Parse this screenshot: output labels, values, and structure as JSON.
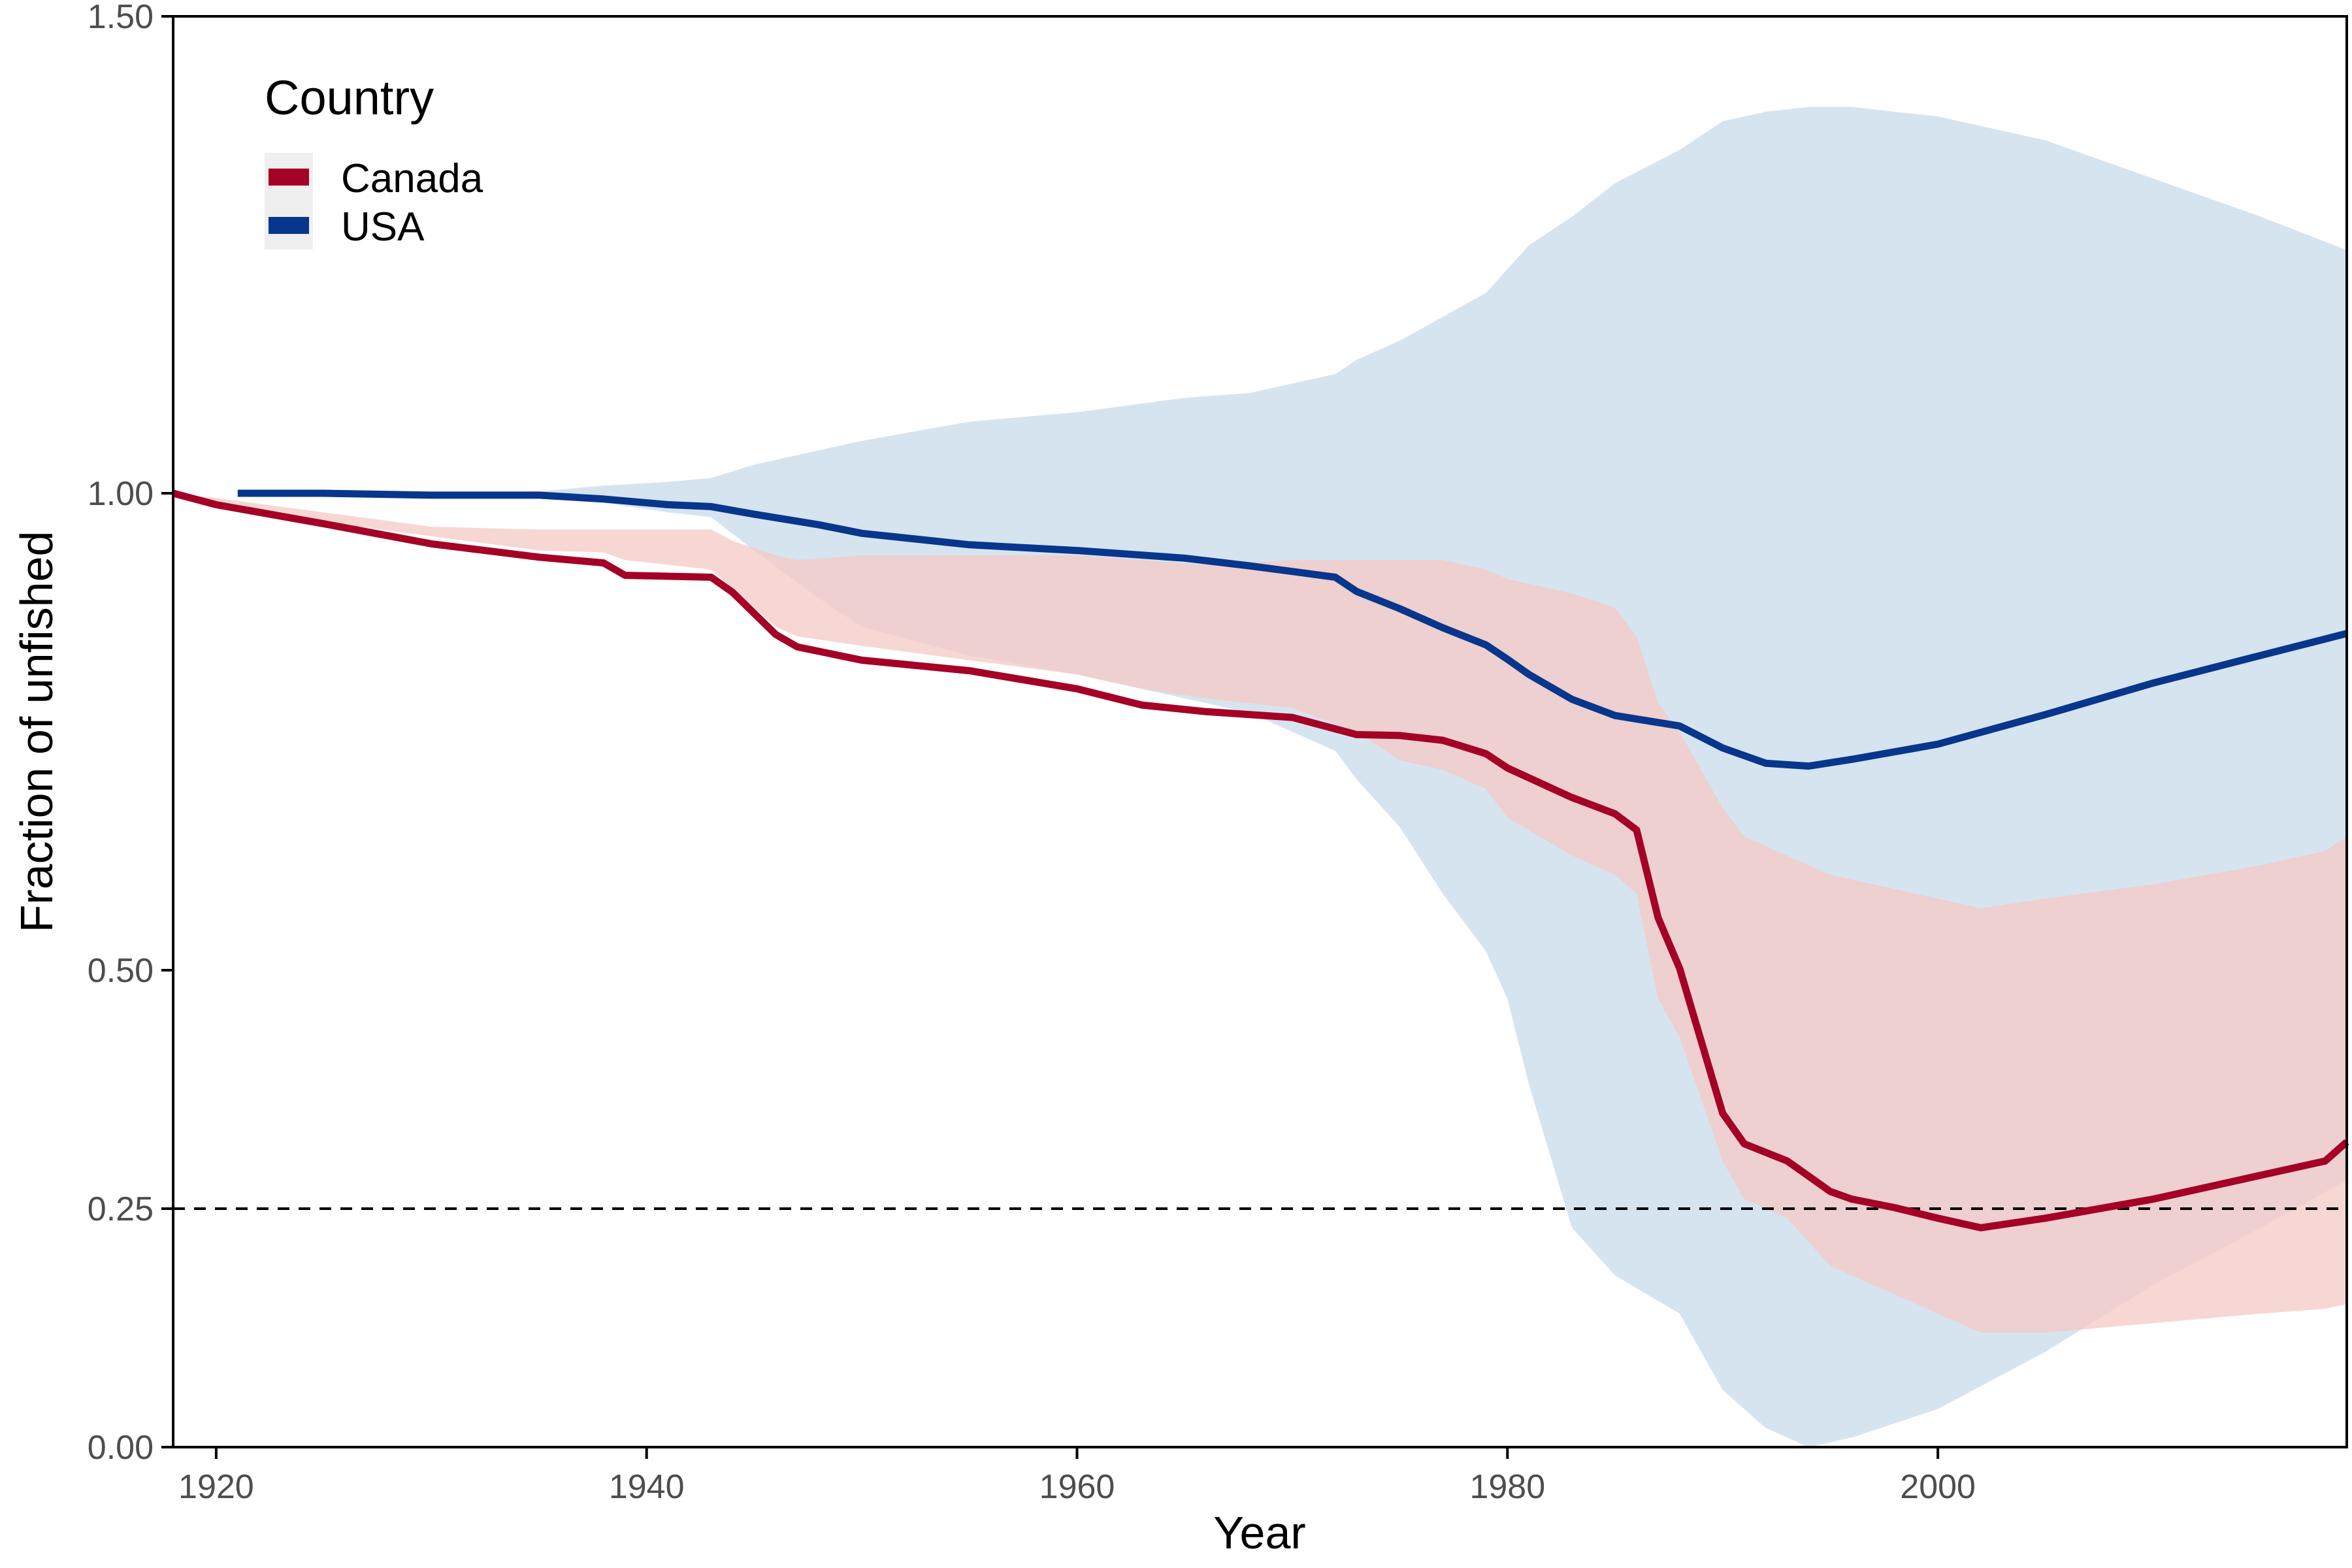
{
  "chart_data": {
    "type": "line",
    "xlabel": "Year",
    "ylabel": "Fraction of unfished",
    "xlim": [
      1918,
      2019
    ],
    "ylim": [
      0,
      1.5
    ],
    "x_ticks": [
      "1920",
      "1940",
      "1960",
      "1980",
      "2000"
    ],
    "y_ticks": [
      "0.00",
      "0.25",
      "0.50",
      "1.00",
      "1.50"
    ],
    "y_scale_note": "non-uniform: 0.00, 0.25, 0.50 evenly spaced; 1.00 and 1.50 on compressed upper segment",
    "reference_line": {
      "y": 0.25,
      "style": "dashed",
      "color": "#000000"
    },
    "legend": {
      "title": "Country",
      "position": "top-left",
      "entries": [
        "Canada",
        "USA"
      ]
    },
    "series": [
      {
        "name": "Canada",
        "color": "#a50026",
        "band_color": "#f4c9c4",
        "x": [
          1918,
          1920,
          1925,
          1930,
          1935,
          1938,
          1939,
          1943,
          1944,
          1946,
          1947,
          1950,
          1955,
          1960,
          1963,
          1966,
          1970,
          1973,
          1975,
          1977,
          1979,
          1980,
          1983,
          1985,
          1986,
          1987,
          1988,
          1990,
          1991,
          1993,
          1995,
          1996,
          1998,
          2000,
          2002,
          2005,
          2010,
          2015,
          2018,
          2019
        ],
        "y": [
          1.0,
          0.988,
          0.968,
          0.947,
          0.933,
          0.927,
          0.914,
          0.912,
          0.896,
          0.852,
          0.839,
          0.825,
          0.814,
          0.795,
          0.778,
          0.771,
          0.765,
          0.747,
          0.746,
          0.741,
          0.727,
          0.712,
          0.681,
          0.664,
          0.647,
          0.555,
          0.502,
          0.35,
          0.318,
          0.3,
          0.268,
          0.26,
          0.251,
          0.24,
          0.23,
          0.24,
          0.26,
          0.285,
          0.3,
          0.32
        ],
        "lower": [
          1.0,
          0.99,
          0.97,
          0.955,
          0.94,
          0.938,
          0.93,
          0.92,
          0.9,
          0.86,
          0.85,
          0.84,
          0.825,
          0.81,
          0.795,
          0.785,
          0.775,
          0.75,
          0.72,
          0.71,
          0.69,
          0.66,
          0.62,
          0.6,
          0.58,
          0.47,
          0.43,
          0.3,
          0.26,
          0.24,
          0.19,
          0.18,
          0.16,
          0.14,
          0.12,
          0.12,
          0.13,
          0.14,
          0.145,
          0.15
        ],
        "upper": [
          1.0,
          0.995,
          0.98,
          0.965,
          0.962,
          0.962,
          0.962,
          0.962,
          0.95,
          0.935,
          0.93,
          0.935,
          0.935,
          0.935,
          0.93,
          0.925,
          0.93,
          0.93,
          0.93,
          0.93,
          0.92,
          0.91,
          0.895,
          0.88,
          0.85,
          0.78,
          0.75,
          0.67,
          0.64,
          0.62,
          0.6,
          0.595,
          0.585,
          0.575,
          0.565,
          0.575,
          0.59,
          0.61,
          0.625,
          0.64
        ]
      },
      {
        "name": "USA",
        "color": "#08368c",
        "band_color": "#d6e4f0",
        "x": [
          1921,
          1925,
          1930,
          1935,
          1938,
          1941,
          1943,
          1945,
          1948,
          1950,
          1955,
          1960,
          1965,
          1968,
          1970,
          1972,
          1973,
          1975,
          1977,
          1979,
          1980,
          1981,
          1983,
          1985,
          1988,
          1990,
          1992,
          1994,
          1996,
          2000,
          2005,
          2010,
          2015,
          2019
        ],
        "y": [
          1.0,
          1.0,
          0.998,
          0.998,
          0.994,
          0.988,
          0.986,
          0.978,
          0.967,
          0.958,
          0.946,
          0.94,
          0.932,
          0.924,
          0.918,
          0.912,
          0.897,
          0.879,
          0.859,
          0.841,
          0.826,
          0.81,
          0.784,
          0.767,
          0.756,
          0.733,
          0.717,
          0.714,
          0.721,
          0.737,
          0.768,
          0.801,
          0.83,
          0.853
        ],
        "lower": [
          1.0,
          1.0,
          0.998,
          0.995,
          0.99,
          0.98,
          0.975,
          0.94,
          0.89,
          0.86,
          0.83,
          0.81,
          0.785,
          0.77,
          0.75,
          0.73,
          0.7,
          0.65,
          0.58,
          0.52,
          0.47,
          0.38,
          0.23,
          0.18,
          0.14,
          0.06,
          0.02,
          0.0,
          0.01,
          0.04,
          0.1,
          0.17,
          0.23,
          0.28
        ],
        "upper": [
          1.0,
          1.0,
          1.0,
          1.002,
          1.008,
          1.012,
          1.016,
          1.03,
          1.045,
          1.055,
          1.075,
          1.085,
          1.1,
          1.105,
          1.115,
          1.125,
          1.14,
          1.16,
          1.185,
          1.21,
          1.235,
          1.26,
          1.29,
          1.325,
          1.36,
          1.39,
          1.4,
          1.405,
          1.405,
          1.395,
          1.37,
          1.33,
          1.29,
          1.255
        ]
      }
    ]
  }
}
